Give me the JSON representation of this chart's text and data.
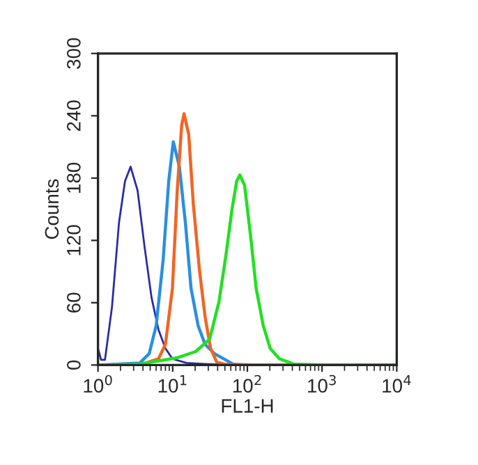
{
  "chart_data": {
    "type": "line",
    "xlabel": "FL1-H",
    "ylabel": "Counts",
    "log": "x",
    "xlim": [
      1,
      10000
    ],
    "ylim": [
      0,
      300
    ],
    "xticks": [
      {
        "value": 1,
        "label": "10$^{0}$"
      },
      {
        "value": 10,
        "label": "10$^{1}$"
      },
      {
        "value": 100,
        "label": "10$^{2}$"
      },
      {
        "value": 1000,
        "label": "10$^{3}$"
      },
      {
        "value": 10000,
        "label": "10$^{4}$"
      }
    ],
    "yticks": [
      0,
      60,
      120,
      180,
      240,
      300
    ],
    "grid": false,
    "legend": false,
    "marker": "none",
    "line_style": "solid",
    "series": [
      {
        "color": "#2a2aa8",
        "x": [
          1,
          1.1,
          1.24,
          1.54,
          1.91,
          2.3,
          2.73,
          3.39,
          4.2,
          5.21,
          6.46,
          8.0,
          9.93,
          15.3,
          27.1,
          64.1,
          10000
        ],
        "values": [
          16,
          5,
          5,
          56,
          137,
          177,
          191,
          168,
          114,
          65,
          34,
          16,
          6,
          2,
          1,
          0,
          0
        ]
      },
      {
        "color": "#2a8fe0",
        "x": [
          1,
          3.64,
          4.85,
          6.01,
          7.45,
          8.85,
          10.2,
          12.3,
          14.8,
          17.6,
          21.9,
          27.1,
          36.1,
          48.1,
          64.1,
          85.4,
          10000
        ],
        "values": [
          0,
          2,
          11,
          38,
          101,
          177,
          215,
          191,
          137,
          74,
          38,
          20,
          11,
          6,
          1,
          0,
          0
        ]
      },
      {
        "color": "#f26522",
        "x": [
          1,
          3.64,
          6.46,
          8.0,
          9.93,
          11.5,
          13.2,
          14.2,
          16.4,
          18.9,
          22.8,
          27.1,
          32.2,
          38.8,
          48.1,
          131,
          10000
        ],
        "values": [
          0,
          0,
          6,
          20,
          74,
          168,
          231,
          242,
          222,
          155,
          92,
          47,
          16,
          3,
          1,
          0,
          0
        ]
      },
      {
        "color": "#22e022",
        "x": [
          1,
          1.15,
          3.64,
          11.5,
          20.3,
          31.3,
          41.7,
          51.7,
          62.3,
          71.9,
          79.4,
          91.8,
          111,
          131,
          163,
          202,
          269,
          414,
          1130,
          10000
        ],
        "values": [
          0,
          0,
          1,
          7,
          13,
          25,
          61,
          106,
          150,
          177,
          183,
          173,
          123,
          74,
          38,
          16,
          6,
          1,
          0,
          0
        ]
      }
    ]
  }
}
